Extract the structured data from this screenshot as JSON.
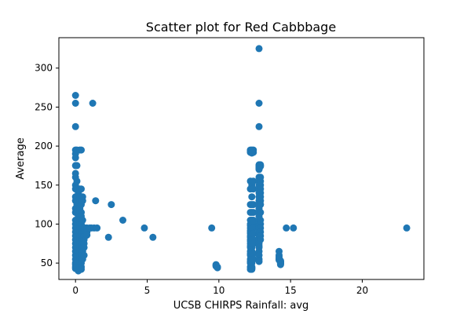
{
  "chart_data": {
    "type": "scatter",
    "title": "Scatter plot for Red Cabbbage",
    "xlabel": "UCSB CHIRPS Rainfall: avg",
    "ylabel": "Average",
    "xlim": [
      -1.16,
      24.3
    ],
    "ylim": [
      29,
      339
    ],
    "xticks": [
      0,
      5,
      10,
      15,
      20
    ],
    "yticks": [
      50,
      100,
      150,
      200,
      250,
      300
    ],
    "grid": false,
    "marker_color": "#1f77b4",
    "series": [
      {
        "x": [
          0.0,
          0.0,
          0.0,
          0.0,
          0.0,
          0.0,
          0.0,
          0.0,
          0.0,
          0.0,
          0.0,
          0.0,
          0.0,
          0.0,
          0.0,
          0.0,
          0.0,
          0.0,
          0.0,
          0.0,
          0.0,
          0.0,
          0.0,
          0.0,
          0.0,
          0.0,
          0.0,
          0.0,
          0.0,
          0.0,
          0.1,
          0.1,
          0.1,
          0.1,
          0.1,
          0.1,
          0.1,
          0.1,
          0.1,
          0.1,
          0.1,
          0.1,
          0.1,
          0.1,
          0.1,
          0.1,
          0.1,
          0.1,
          0.1,
          0.1,
          0.2,
          0.2,
          0.2,
          0.2,
          0.2,
          0.2,
          0.2,
          0.2,
          0.2,
          0.2,
          0.2,
          0.2,
          0.2,
          0.2,
          0.2,
          0.2,
          0.2,
          0.2,
          0.2,
          0.2,
          0.2,
          0.3,
          0.3,
          0.3,
          0.3,
          0.3,
          0.3,
          0.3,
          0.3,
          0.3,
          0.3,
          0.3,
          0.3,
          0.3,
          0.3,
          0.3,
          0.3,
          0.3,
          0.3,
          0.3,
          0.4,
          0.4,
          0.4,
          0.4,
          0.4,
          0.4,
          0.4,
          0.4,
          0.4,
          0.4,
          0.4,
          0.4,
          0.4,
          0.4,
          0.4,
          0.4,
          0.4,
          0.4,
          0.4,
          0.4,
          0.4,
          0.5,
          0.5,
          0.5,
          0.5,
          0.5,
          0.5,
          0.5,
          0.5,
          0.5,
          0.5,
          0.5,
          0.5,
          0.5,
          0.5,
          0.5,
          0.6,
          0.6,
          0.6,
          0.6,
          0.6,
          0.6,
          0.6,
          0.6,
          0.6,
          0.6,
          0.6,
          0.7,
          0.7,
          0.7,
          0.7,
          0.7,
          0.7,
          0.8,
          0.8,
          0.8,
          1.0,
          1.1,
          1.2,
          1.3,
          1.4,
          1.5,
          2.3,
          2.5,
          3.3,
          4.8,
          5.4,
          9.5,
          9.8,
          9.8,
          9.8,
          9.9,
          9.9,
          12.2,
          12.2,
          12.2,
          12.2,
          12.2,
          12.2,
          12.2,
          12.2,
          12.2,
          12.2,
          12.2,
          12.2,
          12.2,
          12.2,
          12.2,
          12.2,
          12.2,
          12.2,
          12.2,
          12.2,
          12.2,
          12.2,
          12.2,
          12.2,
          12.2,
          12.2,
          12.2,
          12.2,
          12.2,
          12.2,
          12.3,
          12.3,
          12.3,
          12.3,
          12.3,
          12.3,
          12.3,
          12.3,
          12.3,
          12.3,
          12.3,
          12.3,
          12.3,
          12.3,
          12.3,
          12.3,
          12.3,
          12.3,
          12.3,
          12.3,
          12.3,
          12.3,
          12.3,
          12.3,
          12.3,
          12.4,
          12.4,
          12.4,
          12.4,
          12.4,
          12.4,
          12.4,
          12.4,
          12.4,
          12.4,
          12.4,
          12.4,
          12.4,
          12.4,
          12.8,
          12.8,
          12.8,
          12.8,
          12.8,
          12.8,
          12.8,
          12.8,
          12.8,
          12.8,
          12.8,
          12.8,
          12.8,
          12.8,
          12.8,
          12.8,
          12.8,
          12.8,
          12.8,
          12.8,
          12.8,
          12.8,
          12.8,
          12.8,
          12.8,
          12.8,
          12.8,
          12.8,
          12.8,
          12.8,
          12.8,
          12.8,
          12.8,
          12.8,
          12.8,
          12.8,
          12.8,
          12.8,
          12.8,
          12.8,
          12.9,
          12.9,
          12.9,
          12.9,
          12.9,
          12.9,
          12.9,
          12.9,
          12.9,
          12.9,
          12.9,
          12.9,
          12.9,
          12.9,
          12.9,
          12.9,
          12.9,
          12.9,
          14.2,
          14.2,
          14.2,
          14.2,
          14.2,
          14.2,
          14.3,
          14.3,
          14.3,
          14.3,
          14.3,
          14.3,
          14.3,
          14.7,
          15.2,
          23.1
        ],
        "y": [
          265,
          255,
          225,
          195,
          190,
          185,
          175,
          165,
          160,
          150,
          145,
          135,
          130,
          120,
          115,
          105,
          100,
          95,
          90,
          85,
          80,
          75,
          70,
          65,
          60,
          55,
          50,
          48,
          45,
          43,
          195,
          175,
          155,
          145,
          135,
          125,
          115,
          105,
          100,
          95,
          90,
          85,
          80,
          75,
          70,
          65,
          60,
          55,
          50,
          45,
          145,
          140,
          135,
          130,
          120,
          115,
          110,
          100,
          95,
          90,
          85,
          80,
          75,
          70,
          65,
          60,
          55,
          50,
          45,
          42,
          40,
          195,
          145,
          135,
          130,
          120,
          115,
          105,
          100,
          95,
          90,
          85,
          80,
          75,
          70,
          65,
          60,
          55,
          50,
          45,
          195,
          145,
          135,
          130,
          125,
          115,
          110,
          100,
          95,
          90,
          88,
          85,
          80,
          75,
          70,
          65,
          60,
          55,
          50,
          45,
          42,
          135,
          130,
          105,
          95,
          92,
          90,
          88,
          85,
          82,
          80,
          75,
          70,
          65,
          60,
          55,
          95,
          92,
          90,
          88,
          86,
          85,
          83,
          80,
          75,
          70,
          60,
          95,
          92,
          90,
          88,
          86,
          85,
          95,
          90,
          86,
          95,
          95,
          255,
          95,
          130,
          95,
          83,
          125,
          105,
          95,
          83,
          95,
          48,
          47,
          46,
          45,
          44,
          195,
          194,
          193,
          192,
          155,
          145,
          125,
          115,
          105,
          100,
          98,
          95,
          92,
          90,
          88,
          85,
          83,
          80,
          78,
          75,
          72,
          70,
          65,
          62,
          60,
          55,
          52,
          50,
          45,
          42,
          195,
          194,
          193,
          192,
          191,
          150,
          135,
          125,
          115,
          105,
          100,
          98,
          95,
          90,
          85,
          80,
          75,
          70,
          65,
          55,
          50,
          45,
          44,
          43,
          42,
          195,
          192,
          155,
          145,
          125,
          115,
          105,
          100,
          95,
          88,
          80,
          75,
          62,
          55,
          325,
          255,
          225,
          176,
          175,
          174,
          173,
          172,
          171,
          170,
          160,
          155,
          150,
          145,
          140,
          135,
          130,
          125,
          120,
          115,
          110,
          105,
          100,
          98,
          95,
          92,
          90,
          88,
          86,
          85,
          83,
          80,
          78,
          75,
          72,
          70,
          65,
          60,
          55,
          52,
          176,
          175,
          174,
          160,
          155,
          150,
          145,
          140,
          135,
          130,
          125,
          115,
          105,
          100,
          95,
          90,
          85,
          80,
          65,
          60,
          58,
          56,
          55,
          54,
          53,
          52,
          51,
          50,
          50,
          49,
          48,
          95,
          95,
          95
        ]
      }
    ]
  }
}
